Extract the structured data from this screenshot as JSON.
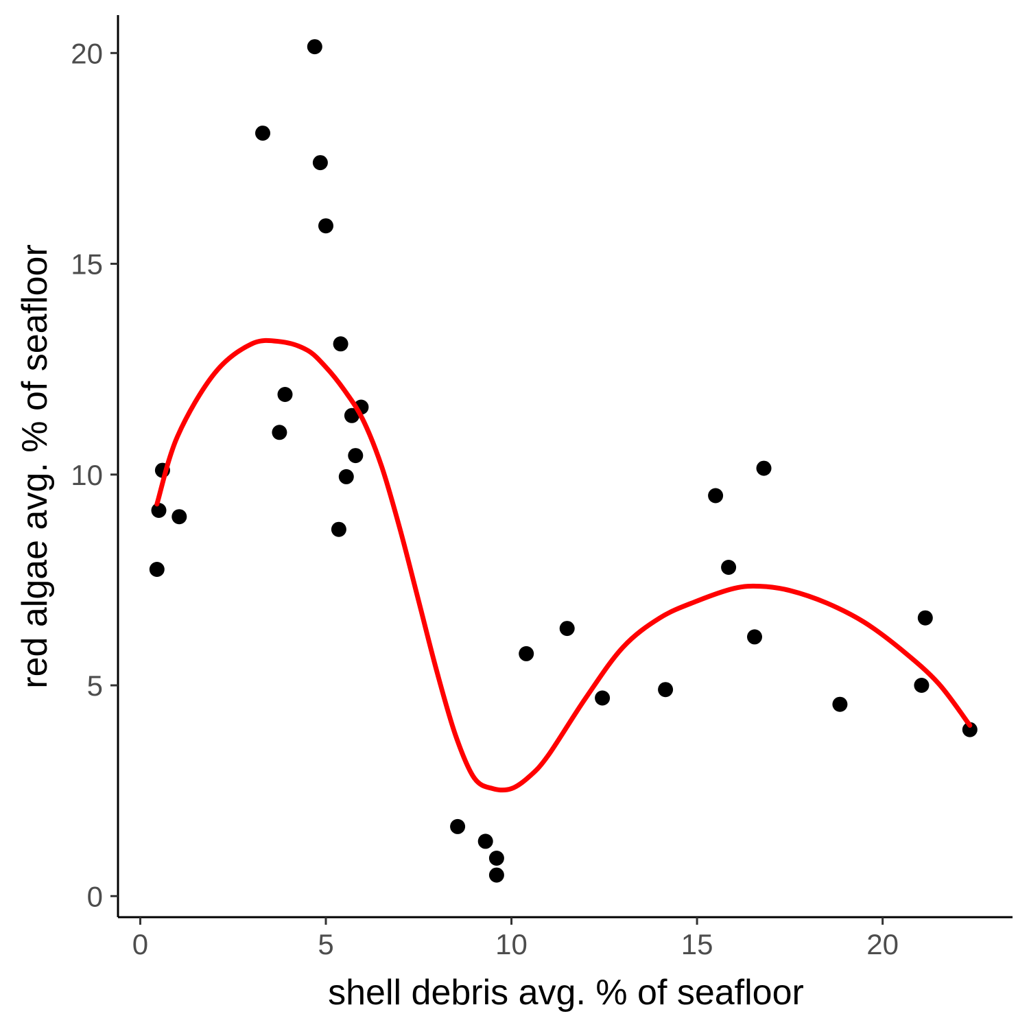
{
  "chart_data": {
    "type": "scatter",
    "title": "",
    "xlabel": "shell debris avg. % of seafloor",
    "ylabel": "red algae avg. % of seafloor",
    "xlim": [
      -0.6,
      23.5
    ],
    "ylim": [
      -0.5,
      20.9
    ],
    "x_ticks": [
      0,
      5,
      10,
      15,
      20
    ],
    "y_ticks": [
      0,
      5,
      10,
      15,
      20
    ],
    "grid": false,
    "colors": {
      "points": "#000000",
      "fit_line": "#ff0000",
      "axis": "#000000",
      "tick_labels": "#4d4d4d"
    },
    "series": [
      {
        "kind": "points",
        "x": [
          0.45,
          0.5,
          0.6,
          1.05,
          3.3,
          3.75,
          3.9,
          4.7,
          4.85,
          5.0,
          5.35,
          5.4,
          5.55,
          5.7,
          5.8,
          5.95,
          8.55,
          9.3,
          9.6,
          9.6,
          10.4,
          11.5,
          12.45,
          14.15,
          15.5,
          15.85,
          16.55,
          16.8,
          18.85,
          21.05,
          21.15,
          22.35
        ],
        "y": [
          7.75,
          9.15,
          10.1,
          9.0,
          18.1,
          11.0,
          11.9,
          20.15,
          17.4,
          15.9,
          8.7,
          13.1,
          9.95,
          11.4,
          10.45,
          11.6,
          1.65,
          1.3,
          0.9,
          0.5,
          5.75,
          6.35,
          4.7,
          4.9,
          9.5,
          7.8,
          6.15,
          10.15,
          4.55,
          5.0,
          6.6,
          3.95
        ]
      },
      {
        "kind": "smooth",
        "x": [
          0.45,
          1,
          2,
          3,
          3.8,
          4.5,
          5,
          5.5,
          6,
          6.5,
          7,
          7.5,
          8,
          8.5,
          9,
          9.5,
          10,
          10.5,
          11,
          12,
          13,
          14,
          15,
          16,
          16.7,
          17.5,
          18.5,
          19.5,
          20.5,
          21.5,
          22.35
        ],
        "y": [
          9.3,
          10.9,
          12.4,
          13.1,
          13.15,
          12.95,
          12.55,
          12.0,
          11.3,
          10.2,
          8.7,
          7.0,
          5.3,
          3.8,
          2.8,
          2.55,
          2.55,
          2.85,
          3.35,
          4.7,
          5.9,
          6.6,
          7.0,
          7.3,
          7.35,
          7.25,
          6.95,
          6.5,
          5.85,
          5.05,
          4.05
        ]
      }
    ]
  }
}
